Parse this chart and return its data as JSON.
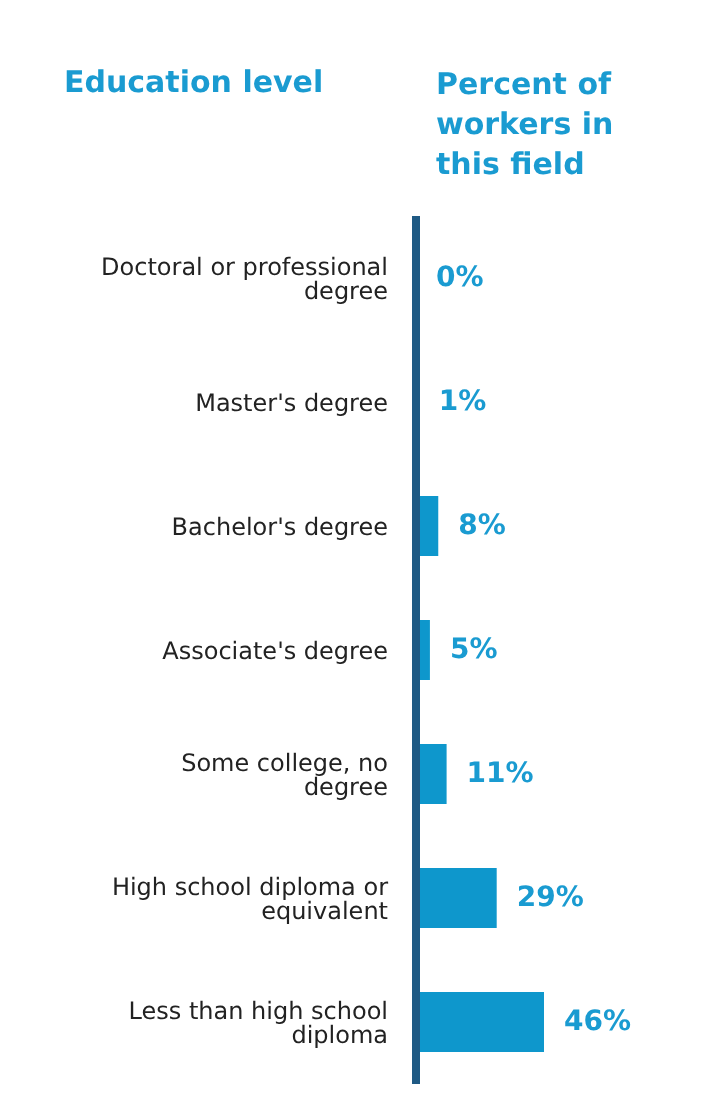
{
  "chart_data": {
    "type": "bar",
    "orientation": "horizontal",
    "ylabel": "Education level",
    "xlabel": "Percent of workers in this field",
    "categories": [
      "Doctoral or professional degree",
      "Master's degree",
      "Bachelor's degree",
      "Associate's degree",
      "Some college, no degree",
      "High school diploma or equivalent",
      "Less than high school diploma"
    ],
    "values": [
      0,
      1,
      8,
      5,
      11,
      29,
      46
    ],
    "value_labels": [
      "0%",
      "1%",
      "8%",
      "5%",
      "11%",
      "29%",
      "46%"
    ],
    "color": "#0e97cc"
  }
}
